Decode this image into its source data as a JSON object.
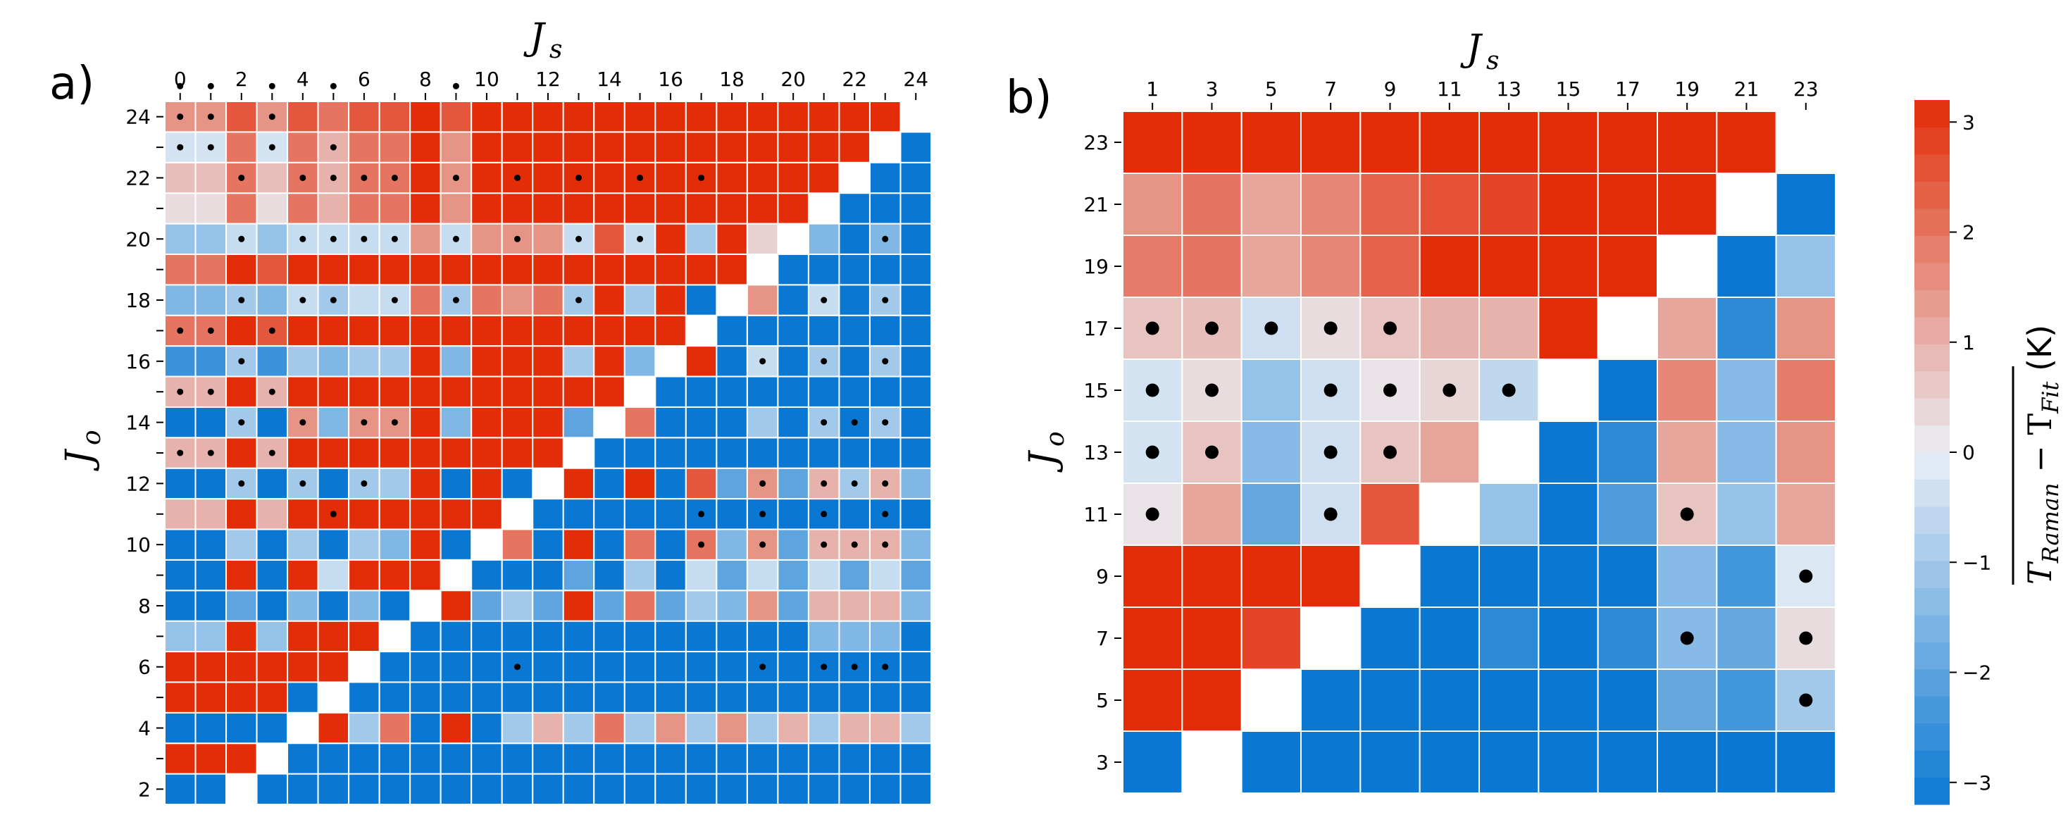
{
  "chart_data": [
    {
      "type": "heatmap",
      "panel_label": "a)",
      "xlabel_main": "J",
      "xlabel_sub": "s",
      "ylabel_main": "J",
      "ylabel_sub": "o",
      "x_values": [
        0,
        1,
        2,
        3,
        4,
        5,
        6,
        7,
        8,
        9,
        10,
        11,
        12,
        13,
        14,
        15,
        16,
        17,
        18,
        19,
        20,
        21,
        22,
        23,
        24
      ],
      "x_tick_labels": [
        "0",
        "2",
        "4",
        "6",
        "8",
        "10",
        "12",
        "14",
        "16",
        "18",
        "20",
        "22",
        "24"
      ],
      "y_values": [
        2,
        3,
        4,
        5,
        6,
        7,
        8,
        9,
        10,
        11,
        12,
        13,
        14,
        15,
        16,
        17,
        18,
        19,
        20,
        21,
        22,
        23,
        24
      ],
      "y_tick_labels": [
        "2",
        "4",
        "6",
        "8",
        "10",
        "12",
        "14",
        "16",
        "18",
        "20",
        "22",
        "24"
      ],
      "value_range": [
        -3.2,
        3.2
      ],
      "note": "Rows listed bottom (J_o=2) to top (J_o=24); columns J_s=0..24. null = no cell. Values are relative color levels; dots mark significant cells.",
      "rows": [
        [
          -3.2,
          -3.2,
          null,
          -3.2,
          -3.2,
          -3.2,
          -3.2,
          -3.2,
          -3.2,
          -3.2,
          -3.2,
          -3.2,
          -3.2,
          -3.2,
          -3.2,
          -3.2,
          -3.2,
          -3.2,
          -3.2,
          -3.2,
          -3.2,
          -3.2,
          -3.2,
          -3.2,
          -3.2
        ],
        [
          3.2,
          3.2,
          3.2,
          null,
          -3.2,
          -3.2,
          -3.2,
          -3.2,
          -3.2,
          -3.2,
          -3.2,
          -3.2,
          -3.2,
          -3.2,
          -3.2,
          -3.2,
          -3.2,
          -3.2,
          -3.2,
          -3.2,
          -3.2,
          -3.2,
          -3.2,
          -3.2,
          -3.2
        ],
        [
          -3.2,
          -3.2,
          -3.2,
          -3.2,
          null,
          3.2,
          -1.0,
          2.0,
          -3.2,
          3.2,
          -3.2,
          -1.0,
          1.0,
          -1.0,
          2.0,
          -1.0,
          1.5,
          -1.0,
          1.5,
          -1.0,
          1.0,
          -1.0,
          1.0,
          1.0,
          -1.0
        ],
        [
          3.2,
          3.2,
          3.2,
          3.2,
          -3.2,
          null,
          -3.2,
          -3.2,
          -3.2,
          -3.2,
          -3.2,
          -3.2,
          -3.2,
          -3.2,
          -3.2,
          -3.2,
          -3.2,
          -3.2,
          -3.2,
          -3.2,
          -3.2,
          -3.2,
          -3.2,
          -3.2,
          -3.2
        ],
        [
          3.2,
          3.2,
          3.2,
          3.2,
          3.2,
          3.2,
          null,
          -3.2,
          -3.2,
          -3.2,
          -3.2,
          -3.2,
          -3.2,
          -3.2,
          -3.2,
          -3.2,
          -3.2,
          -3.2,
          -3.2,
          -3.2,
          -3.2,
          -3.2,
          -3.2,
          -3.2,
          -3.2
        ],
        [
          -1.2,
          -1.2,
          3.2,
          -1.2,
          3.2,
          3.2,
          3.2,
          null,
          -3.2,
          -3.2,
          -3.2,
          -3.2,
          -3.2,
          -3.2,
          -3.2,
          -3.2,
          -3.2,
          -3.2,
          -3.2,
          -3.2,
          -3.2,
          -1.5,
          -1.5,
          -1.5,
          -3.2
        ],
        [
          -3.2,
          -3.2,
          -2.0,
          -3.2,
          -1.5,
          -3.2,
          -1.5,
          -3.2,
          null,
          3.2,
          -2.0,
          -1.0,
          -2.0,
          3.2,
          -2.0,
          2.0,
          -2.0,
          -1.0,
          -1.5,
          1.5,
          -2.0,
          1.0,
          1.0,
          1.0,
          -1.5
        ],
        [
          -3.2,
          -3.2,
          3.2,
          -3.2,
          3.2,
          -0.5,
          3.2,
          3.2,
          3.2,
          null,
          -3.2,
          -3.2,
          -3.2,
          -2.0,
          -3.2,
          -1.0,
          -3.2,
          -0.5,
          -2.0,
          -0.5,
          -2.0,
          -0.5,
          -2.0,
          -0.5,
          -2.0
        ],
        [
          -3.2,
          -3.2,
          -1.0,
          -3.2,
          -1.0,
          -3.2,
          -1.0,
          -1.5,
          3.2,
          -3.2,
          null,
          2.0,
          -3.2,
          3.2,
          -3.2,
          2.0,
          -3.2,
          2.0,
          -1.5,
          1.5,
          -2.0,
          1.0,
          1.0,
          1.0,
          -1.5
        ],
        [
          1.0,
          1.0,
          3.2,
          1.0,
          3.2,
          3.2,
          3.2,
          3.2,
          3.2,
          3.2,
          3.2,
          null,
          -3.2,
          -3.2,
          -3.2,
          -3.2,
          -3.2,
          -3.2,
          -3.2,
          -3.2,
          -3.2,
          -3.2,
          -3.2,
          -3.2,
          -3.2
        ],
        [
          -3.2,
          -3.2,
          -1.0,
          -3.2,
          -1.0,
          -3.2,
          -1.0,
          -1.0,
          3.2,
          -3.2,
          3.2,
          -3.2,
          null,
          3.2,
          -3.2,
          3.2,
          -3.2,
          2.5,
          -2.0,
          1.5,
          -2.0,
          1.0,
          -1.0,
          1.0,
          -1.5
        ],
        [
          1.0,
          1.0,
          3.2,
          1.0,
          3.2,
          3.2,
          3.2,
          3.2,
          3.2,
          3.2,
          3.2,
          3.2,
          3.2,
          null,
          -3.2,
          -3.2,
          -3.2,
          -3.2,
          -3.2,
          -3.2,
          -3.2,
          -3.2,
          -3.2,
          -3.2,
          -3.2
        ],
        [
          -3.2,
          -3.2,
          -1.0,
          -3.2,
          1.5,
          -1.5,
          1.5,
          1.5,
          3.2,
          -1.5,
          3.2,
          3.2,
          3.2,
          -2.0,
          null,
          2.0,
          -3.2,
          -3.2,
          -3.2,
          -1.0,
          -3.2,
          -1.0,
          -3.2,
          -1.0,
          -3.2
        ],
        [
          1.0,
          1.0,
          3.2,
          1.0,
          3.2,
          3.2,
          3.2,
          3.2,
          3.2,
          3.2,
          3.2,
          3.2,
          3.2,
          3.2,
          3.2,
          null,
          -3.2,
          -3.2,
          -3.2,
          -3.2,
          -3.2,
          -3.2,
          -3.2,
          -3.2,
          -3.2
        ],
        [
          -2.5,
          -2.5,
          -1.0,
          -2.5,
          -1.0,
          -1.5,
          -1.0,
          -1.0,
          3.2,
          -1.5,
          3.2,
          3.2,
          3.2,
          -1.0,
          3.2,
          -1.5,
          null,
          3.2,
          -3.2,
          -0.5,
          -3.2,
          -1.0,
          -3.2,
          -1.0,
          -3.2
        ],
        [
          2.0,
          2.0,
          3.2,
          2.5,
          3.2,
          3.2,
          3.2,
          3.2,
          3.2,
          3.2,
          3.2,
          3.2,
          3.2,
          3.2,
          3.2,
          3.2,
          3.2,
          null,
          -3.2,
          -3.2,
          -3.2,
          -3.2,
          -3.2,
          -3.2,
          -3.2
        ],
        [
          -1.5,
          -1.5,
          -1.0,
          -1.5,
          -0.5,
          -1.0,
          -0.5,
          -0.5,
          2.0,
          -1.0,
          2.0,
          1.5,
          2.0,
          -1.0,
          3.2,
          -1.0,
          3.2,
          -3.2,
          null,
          1.5,
          -3.2,
          -0.5,
          -3.2,
          -1.0,
          -3.2
        ],
        [
          2.0,
          2.0,
          3.2,
          2.5,
          3.2,
          3.2,
          3.2,
          3.2,
          3.2,
          3.2,
          3.2,
          3.2,
          3.2,
          3.2,
          3.2,
          3.2,
          3.2,
          3.2,
          3.2,
          null,
          -3.2,
          -3.2,
          -3.2,
          -3.2,
          -3.2
        ],
        [
          -1.2,
          -1.2,
          -0.5,
          -1.2,
          -0.5,
          -0.5,
          -0.5,
          -0.5,
          1.5,
          -0.5,
          1.5,
          1.5,
          1.5,
          -0.5,
          2.5,
          -0.5,
          3.2,
          -1.0,
          3.2,
          0.5,
          null,
          -1.5,
          -3.2,
          -1.5,
          -3.2
        ],
        [
          0.3,
          0.3,
          2.0,
          0.3,
          2.0,
          1.0,
          2.0,
          2.0,
          3.2,
          1.5,
          3.2,
          3.2,
          3.2,
          3.2,
          3.2,
          3.2,
          3.2,
          3.2,
          3.2,
          3.2,
          3.2,
          null,
          -3.2,
          -3.2,
          -3.2
        ],
        [
          0.8,
          0.8,
          2.0,
          0.8,
          2.0,
          1.0,
          2.0,
          2.0,
          3.2,
          1.5,
          3.2,
          3.2,
          3.2,
          3.2,
          3.2,
          3.2,
          3.2,
          3.2,
          3.2,
          3.2,
          3.2,
          3.2,
          null,
          -3.2,
          -3.2
        ],
        [
          -0.3,
          -0.3,
          2.0,
          -0.3,
          2.0,
          1.0,
          2.0,
          2.0,
          3.2,
          1.5,
          3.2,
          3.2,
          3.2,
          3.2,
          3.2,
          3.2,
          3.2,
          3.2,
          3.2,
          3.2,
          3.2,
          3.2,
          3.2,
          null,
          -3.2
        ],
        [
          1.5,
          1.5,
          2.5,
          1.5,
          2.5,
          2.0,
          2.5,
          2.5,
          3.2,
          2.5,
          3.2,
          3.2,
          3.2,
          3.2,
          3.2,
          3.2,
          3.2,
          3.2,
          3.2,
          3.2,
          3.2,
          3.2,
          3.2,
          3.2,
          null
        ]
      ],
      "dots": [
        [
          4,
          11
        ],
        [
          4,
          19
        ],
        [
          4,
          21
        ],
        [
          4,
          22
        ],
        [
          4,
          23
        ],
        [
          8,
          17
        ],
        [
          8,
          19
        ],
        [
          8,
          21
        ],
        [
          8,
          22
        ],
        [
          8,
          23
        ],
        [
          9,
          5
        ],
        [
          9,
          17
        ],
        [
          9,
          19
        ],
        [
          9,
          21
        ],
        [
          9,
          23
        ],
        [
          10,
          2
        ],
        [
          10,
          4
        ],
        [
          10,
          6
        ],
        [
          10,
          19
        ],
        [
          10,
          21
        ],
        [
          10,
          22
        ],
        [
          10,
          23
        ],
        [
          11,
          0
        ],
        [
          11,
          1
        ],
        [
          11,
          3
        ],
        [
          12,
          2
        ],
        [
          12,
          4
        ],
        [
          12,
          6
        ],
        [
          12,
          7
        ],
        [
          12,
          21
        ],
        [
          12,
          22
        ],
        [
          12,
          23
        ],
        [
          13,
          0
        ],
        [
          13,
          1
        ],
        [
          13,
          3
        ],
        [
          14,
          2
        ],
        [
          14,
          19
        ],
        [
          14,
          21
        ],
        [
          14,
          23
        ],
        [
          15,
          0
        ],
        [
          15,
          1
        ],
        [
          15,
          3
        ],
        [
          16,
          2
        ],
        [
          16,
          4
        ],
        [
          16,
          5
        ],
        [
          16,
          7
        ],
        [
          16,
          9
        ],
        [
          16,
          13
        ],
        [
          16,
          21
        ],
        [
          16,
          23
        ],
        [
          18,
          2
        ],
        [
          18,
          4
        ],
        [
          18,
          5
        ],
        [
          18,
          6
        ],
        [
          18,
          7
        ],
        [
          18,
          9
        ],
        [
          18,
          11
        ],
        [
          18,
          13
        ],
        [
          18,
          15
        ],
        [
          18,
          23
        ],
        [
          20,
          2
        ],
        [
          20,
          4
        ],
        [
          20,
          5
        ],
        [
          20,
          6
        ],
        [
          20,
          7
        ],
        [
          20,
          9
        ],
        [
          20,
          11
        ],
        [
          20,
          13
        ],
        [
          20,
          15
        ],
        [
          20,
          17
        ],
        [
          21,
          0
        ],
        [
          21,
          1
        ],
        [
          21,
          3
        ],
        [
          21,
          5
        ],
        [
          22,
          0
        ],
        [
          22,
          1
        ],
        [
          22,
          3
        ],
        [
          23,
          0
        ],
        [
          23,
          1
        ],
        [
          23,
          3
        ],
        [
          23,
          5
        ],
        [
          23,
          9
        ]
      ]
    },
    {
      "type": "heatmap",
      "panel_label": "b)",
      "xlabel_main": "J",
      "xlabel_sub": "s",
      "ylabel_main": "J",
      "ylabel_sub": "o",
      "x_values": [
        1,
        3,
        5,
        7,
        9,
        11,
        13,
        15,
        17,
        19,
        21,
        23
      ],
      "x_tick_labels": [
        "1",
        "3",
        "5",
        "7",
        "9",
        "11",
        "13",
        "15",
        "17",
        "19",
        "21",
        "23"
      ],
      "y_values": [
        3,
        5,
        7,
        9,
        11,
        13,
        15,
        17,
        19,
        21,
        23
      ],
      "y_tick_labels": [
        "3",
        "5",
        "7",
        "9",
        "11",
        "13",
        "15",
        "17",
        "19",
        "21",
        "23"
      ],
      "value_range": [
        -3.2,
        3.2
      ],
      "note": "Rows listed bottom (J_o=3) to top (J_o=23); columns J_s=1..23. null = no cell.",
      "rows": [
        [
          -3.2,
          null,
          -3.2,
          -3.2,
          -3.2,
          -3.2,
          -3.2,
          -3.2,
          -3.2,
          -3.2,
          -3.2,
          -3.2
        ],
        [
          3.2,
          3.2,
          null,
          -3.2,
          -3.2,
          -3.2,
          -3.2,
          -3.2,
          -3.2,
          -1.9,
          -2.4,
          -1.0
        ],
        [
          3.2,
          3.2,
          2.8,
          null,
          -3.2,
          -3.2,
          -2.7,
          -3.2,
          -2.7,
          -1.4,
          -1.9,
          0.3
        ],
        [
          3.2,
          3.2,
          3.2,
          3.2,
          null,
          -3.2,
          -3.2,
          -3.2,
          -3.2,
          -1.4,
          -2.4,
          -0.2
        ],
        [
          0.2,
          1.2,
          -1.9,
          -0.4,
          2.5,
          null,
          -1.2,
          -3.2,
          -2.2,
          0.7,
          -1.2,
          1.2
        ],
        [
          -0.3,
          0.7,
          -1.4,
          -0.4,
          0.7,
          1.2,
          null,
          -3.2,
          -2.7,
          1.2,
          -1.4,
          1.5
        ],
        [
          -0.3,
          0.3,
          -1.2,
          -0.4,
          0.2,
          0.4,
          -0.6,
          null,
          -3.2,
          1.7,
          -1.4,
          1.9
        ],
        [
          0.7,
          0.8,
          -0.4,
          0.3,
          0.7,
          1.0,
          1.0,
          3.2,
          null,
          1.2,
          -2.7,
          1.5
        ],
        [
          1.9,
          2.0,
          1.2,
          1.7,
          2.3,
          3.2,
          3.2,
          3.2,
          3.2,
          null,
          -3.2,
          -1.2
        ],
        [
          1.5,
          2.0,
          1.2,
          1.7,
          2.3,
          2.6,
          2.8,
          3.2,
          3.2,
          3.2,
          null,
          -3.2
        ],
        [
          3.2,
          3.2,
          3.2,
          3.2,
          3.2,
          3.2,
          3.2,
          3.2,
          3.2,
          3.2,
          3.2,
          null
        ]
      ],
      "dots": [
        [
          1,
          11
        ],
        [
          2,
          9
        ],
        [
          2,
          11
        ],
        [
          3,
          11
        ],
        [
          4,
          0
        ],
        [
          4,
          3
        ],
        [
          4,
          9
        ],
        [
          5,
          0
        ],
        [
          5,
          1
        ],
        [
          5,
          3
        ],
        [
          5,
          4
        ],
        [
          6,
          0
        ],
        [
          6,
          1
        ],
        [
          6,
          3
        ],
        [
          6,
          4
        ],
        [
          6,
          5
        ],
        [
          6,
          6
        ],
        [
          7,
          0
        ],
        [
          7,
          1
        ],
        [
          7,
          2
        ],
        [
          7,
          3
        ],
        [
          7,
          4
        ]
      ]
    }
  ],
  "colorbar": {
    "range": [
      -3.2,
      3.2
    ],
    "levels": 26,
    "ticks": [
      "−3",
      "−2",
      "−1",
      "0",
      "1",
      "2",
      "3"
    ],
    "tick_values": [
      -3,
      -2,
      -1,
      0,
      1,
      2,
      3
    ],
    "label_parts": [
      "T",
      "Raman",
      " − T",
      "Fit",
      " (K)"
    ]
  },
  "colors": {
    "negative_end": "#0a78d2",
    "neutral": "#e9eef5",
    "positive_end": "#e32d08",
    "grid": "#ffffff",
    "dot": "#000000"
  }
}
